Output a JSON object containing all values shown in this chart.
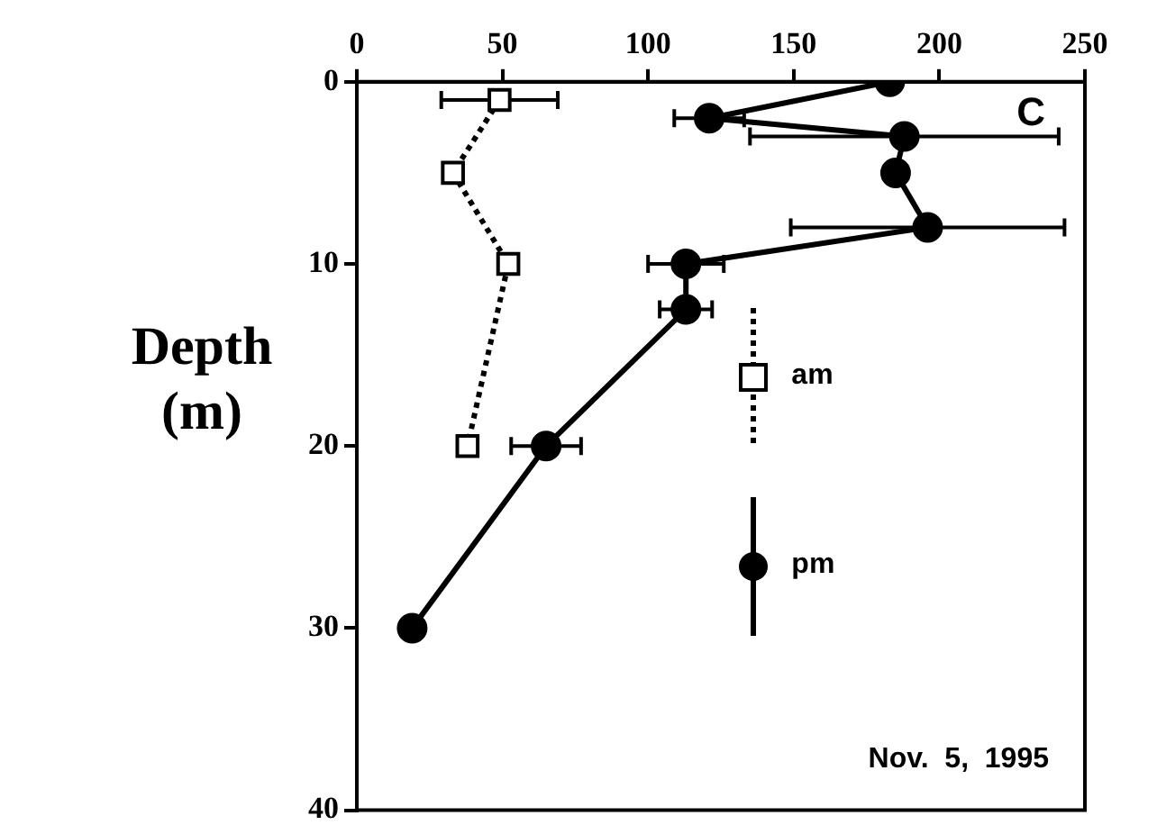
{
  "chart_data": {
    "type": "line",
    "ylabel": "Depth\n(m)",
    "xlim": [
      0,
      250
    ],
    "xticks": [
      0,
      50,
      100,
      150,
      200,
      250
    ],
    "ylim": [
      40,
      0
    ],
    "yticks": [
      0,
      10,
      20,
      30,
      40
    ],
    "grid": false,
    "legend": "right",
    "annotations": [
      "C",
      "Nov.  5,  1995"
    ],
    "series": [
      {
        "name": "am",
        "color": "#000000",
        "marker": "square",
        "line_style": "dotted",
        "x": [
          49,
          33,
          52,
          38
        ],
        "values": [
          1,
          5,
          10,
          20
        ],
        "xerrors": [
          20,
          null,
          null,
          null
        ]
      },
      {
        "name": "pm",
        "color": "#000000",
        "marker": "circle",
        "line_style": "solid",
        "x": [
          183,
          121,
          188,
          185,
          196,
          113,
          113,
          65,
          19
        ],
        "values": [
          0,
          2,
          3,
          5,
          8,
          10,
          12.5,
          20,
          30
        ],
        "xerrors": [
          null,
          12,
          53,
          null,
          47,
          13,
          9,
          12,
          null
        ]
      }
    ]
  }
}
